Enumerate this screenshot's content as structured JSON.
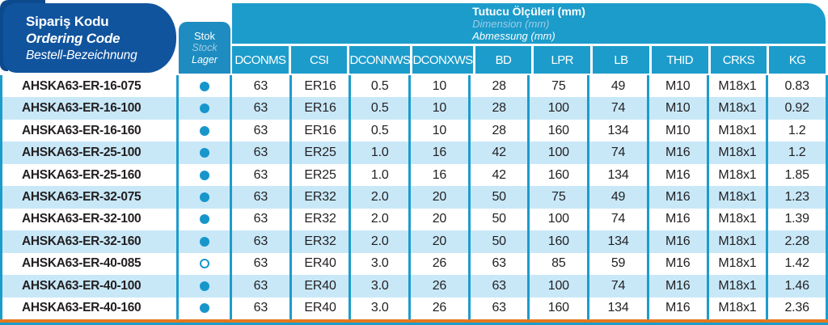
{
  "header": {
    "ordering_code": {
      "line1": "Sipariş Kodu",
      "line2": "Ordering Code",
      "line3": "Bestell-Bezeichnung"
    },
    "stock": {
      "line1": "Stok",
      "line2": "Stock",
      "line3": "Lager"
    },
    "dimensions": {
      "line1": "Tutucu Ölçüleri (mm)",
      "line2": "Dimension (mm)",
      "line3": "Abmessung (mm)"
    },
    "columns": [
      "DCONMS",
      "CSI",
      "DCONNWS",
      "DCONXWS",
      "BD",
      "LPR",
      "LB",
      "THID",
      "CRKS",
      "KG"
    ]
  },
  "rows": [
    {
      "code": "AHSKA63-ER-16-075",
      "stock": "filled",
      "values": [
        "63",
        "ER16",
        "0.5",
        "10",
        "28",
        "75",
        "49",
        "M10",
        "M18x1",
        "0.83"
      ]
    },
    {
      "code": "AHSKA63-ER-16-100",
      "stock": "filled",
      "values": [
        "63",
        "ER16",
        "0.5",
        "10",
        "28",
        "100",
        "74",
        "M10",
        "M18x1",
        "0.92"
      ]
    },
    {
      "code": "AHSKA63-ER-16-160",
      "stock": "filled",
      "values": [
        "63",
        "ER16",
        "0.5",
        "10",
        "28",
        "160",
        "134",
        "M10",
        "M18x1",
        "1.2"
      ]
    },
    {
      "code": "AHSKA63-ER-25-100",
      "stock": "filled",
      "values": [
        "63",
        "ER25",
        "1.0",
        "16",
        "42",
        "100",
        "74",
        "M16",
        "M18x1",
        "1.2"
      ]
    },
    {
      "code": "AHSKA63-ER-25-160",
      "stock": "filled",
      "values": [
        "63",
        "ER25",
        "1.0",
        "16",
        "42",
        "160",
        "134",
        "M16",
        "M18x1",
        "1.85"
      ]
    },
    {
      "code": "AHSKA63-ER-32-075",
      "stock": "filled",
      "values": [
        "63",
        "ER32",
        "2.0",
        "20",
        "50",
        "75",
        "49",
        "M16",
        "M18x1",
        "1.23"
      ]
    },
    {
      "code": "AHSKA63-ER-32-100",
      "stock": "filled",
      "values": [
        "63",
        "ER32",
        "2.0",
        "20",
        "50",
        "100",
        "74",
        "M16",
        "M18x1",
        "1.39"
      ]
    },
    {
      "code": "AHSKA63-ER-32-160",
      "stock": "filled",
      "values": [
        "63",
        "ER32",
        "2.0",
        "20",
        "50",
        "160",
        "134",
        "M16",
        "M18x1",
        "2.28"
      ]
    },
    {
      "code": "AHSKA63-ER-40-085",
      "stock": "hollow",
      "values": [
        "63",
        "ER40",
        "3.0",
        "26",
        "63",
        "85",
        "59",
        "M16",
        "M18x1",
        "1.42"
      ]
    },
    {
      "code": "AHSKA63-ER-40-100",
      "stock": "filled",
      "values": [
        "63",
        "ER40",
        "3.0",
        "26",
        "63",
        "100",
        "74",
        "M16",
        "M18x1",
        "1.46"
      ]
    },
    {
      "code": "AHSKA63-ER-40-160",
      "stock": "filled",
      "values": [
        "63",
        "ER40",
        "3.0",
        "26",
        "63",
        "160",
        "134",
        "M16",
        "M18x1",
        "2.36"
      ]
    }
  ],
  "colors": {
    "navy": "#0C4A8E",
    "ordering_box_blue": "#11549E",
    "stock_box_blue": "#1E8CC0",
    "teal": "#1C9CCB",
    "row_alt_blue": "#C8E8F8",
    "dot_teal": "#1796CC",
    "text_dark": "#231F20",
    "light_italic_blue": "#9FCBE5",
    "bottom_accent_orange": "#E8781E"
  }
}
